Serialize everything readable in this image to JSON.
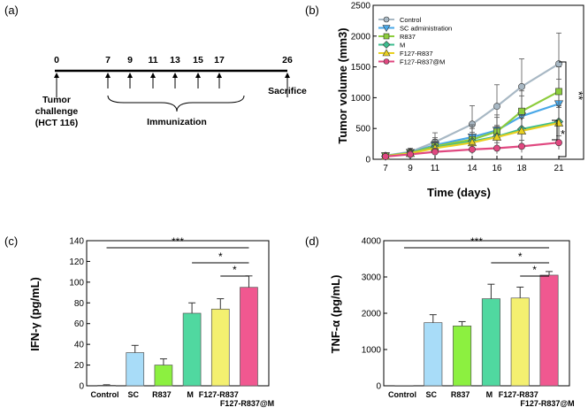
{
  "panels": {
    "a": "(a)",
    "b": "(b)",
    "c": "(c)",
    "d": "(d)"
  },
  "timeline": {
    "days": [
      "0",
      "7",
      "9",
      "11",
      "13",
      "15",
      "17",
      "26"
    ],
    "tumor_label": [
      "Tumor",
      "challenge",
      "(HCT 116)"
    ],
    "immunization_label": "Immunization",
    "sacrifice_label": "Sacrifice"
  },
  "chart_data": [
    {
      "id": "b",
      "type": "line",
      "title": "",
      "xlabel": "Time (days)",
      "ylabel": "Tumor volume (mm3)",
      "x": [
        7,
        9,
        11,
        14,
        16,
        18,
        21
      ],
      "xticks": [
        "7",
        "9",
        "11",
        "14",
        "16",
        "18",
        "21"
      ],
      "ylim": [
        0,
        2500
      ],
      "yticks": [
        "0",
        "500",
        "1000",
        "1500",
        "2000",
        "2500"
      ],
      "legend_position": "top-left",
      "series": [
        {
          "name": "Control",
          "color": "#a8b8c4",
          "marker": "circle",
          "values": [
            60,
            120,
            280,
            570,
            860,
            1180,
            1550
          ],
          "errors": [
            30,
            60,
            150,
            300,
            350,
            450,
            500
          ]
        },
        {
          "name": "SC administration",
          "color": "#4aa8e8",
          "marker": "triangle-down",
          "values": [
            55,
            110,
            230,
            360,
            470,
            700,
            900
          ],
          "errors": [
            25,
            50,
            120,
            200,
            250,
            330,
            400
          ]
        },
        {
          "name": "R837",
          "color": "#8ccc3c",
          "marker": "square",
          "values": [
            55,
            105,
            210,
            320,
            450,
            780,
            1100
          ],
          "errors": [
            25,
            50,
            110,
            180,
            230,
            330,
            400
          ]
        },
        {
          "name": "M",
          "color": "#3dbd8f",
          "marker": "diamond",
          "values": [
            50,
            100,
            190,
            290,
            370,
            490,
            610
          ],
          "errors": [
            20,
            45,
            100,
            150,
            180,
            220,
            260
          ]
        },
        {
          "name": "F127-R837",
          "color": "#e8d020",
          "marker": "triangle-up",
          "values": [
            50,
            95,
            180,
            270,
            360,
            460,
            590
          ],
          "errors": [
            20,
            45,
            95,
            140,
            170,
            210,
            250
          ]
        },
        {
          "name": "F127-R837@M",
          "color": "#e04880",
          "marker": "circle",
          "values": [
            45,
            80,
            120,
            160,
            180,
            210,
            270
          ],
          "errors": [
            20,
            35,
            60,
            80,
            90,
            100,
            110
          ]
        }
      ],
      "annotations": [
        "**",
        "*"
      ]
    },
    {
      "id": "c",
      "type": "bar",
      "title": "",
      "ylabel": "IFN-γ (pg/mL)",
      "categories": [
        "Control",
        "SC",
        "R837",
        "M",
        "F127-R837",
        "F127-R837@M"
      ],
      "values": [
        0.5,
        32,
        20,
        70,
        74,
        95
      ],
      "errors": [
        0.5,
        7,
        6,
        10,
        10,
        11
      ],
      "colors": [
        "#ffffff",
        "#a8dcf8",
        "#8cf040",
        "#50d8a0",
        "#f4f070",
        "#f05890"
      ],
      "ylim": [
        0,
        140
      ],
      "yticks": [
        "0",
        "20",
        "40",
        "60",
        "80",
        "100",
        "120",
        "140"
      ],
      "significance": [
        "***",
        "*",
        "*"
      ]
    },
    {
      "id": "d",
      "type": "bar",
      "title": "",
      "ylabel": "TNF-α (pg/mL)",
      "categories": [
        "Control",
        "SC",
        "R837",
        "M",
        "F127-R837",
        "F127-R837@M"
      ],
      "values": [
        0,
        1740,
        1650,
        2400,
        2420,
        3050
      ],
      "errors": [
        0,
        220,
        120,
        400,
        300,
        100
      ],
      "colors": [
        "#ffffff",
        "#a8dcf8",
        "#8cf040",
        "#50d8a0",
        "#f4f070",
        "#f05890"
      ],
      "ylim": [
        0,
        4000
      ],
      "yticks": [
        "0",
        "1000",
        "2000",
        "3000",
        "4000"
      ],
      "significance": [
        "***",
        "*",
        "*"
      ]
    }
  ]
}
